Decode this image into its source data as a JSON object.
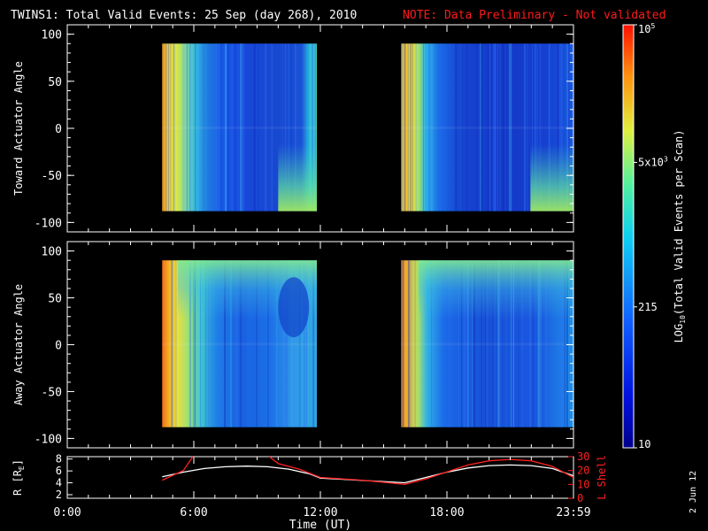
{
  "title_main": "TWINS1: Total Valid Events: 25 Sep (day 268), 2010",
  "title_note": "NOTE: Data Preliminary - Not validated",
  "stamp": "2 Jun 12",
  "colors": {
    "background": "#000000",
    "axis": "#ffffff",
    "note": "#ff1a1a",
    "lshell": "#ff2020",
    "radius": "#ffffff"
  },
  "chart_data": [
    {
      "type": "heatmap",
      "ylabel": "Toward Actuator Angle",
      "yticks": [
        100,
        50,
        0,
        -50,
        -100
      ],
      "ylim": [
        -110,
        110
      ],
      "xlim_hours": [
        0,
        24
      ],
      "data_blocks": [
        {
          "start": "4:30",
          "end": "11:50",
          "angle_range": [
            -88,
            90
          ]
        },
        {
          "start": "15:50",
          "end": "24:00",
          "angle_range": [
            -88,
            90
          ]
        }
      ]
    },
    {
      "type": "heatmap",
      "ylabel": "Away Actuator Angle",
      "yticks": [
        100,
        50,
        0,
        -50,
        -100
      ],
      "ylim": [
        -110,
        110
      ],
      "xlim_hours": [
        0,
        24
      ],
      "data_blocks": [
        {
          "start": "4:30",
          "end": "11:50",
          "angle_range": [
            -88,
            90
          ]
        },
        {
          "start": "15:50",
          "end": "24:00",
          "angle_range": [
            -88,
            90
          ]
        }
      ]
    },
    {
      "type": "line",
      "xlabel": "Time (UT)",
      "xticks": [
        "0:00",
        "6:00",
        "12:00",
        "18:00",
        "23:59"
      ],
      "ylabel_left_prefix": "R [R",
      "ylabel_left_sub": "E",
      "ylabel_left_suffix": "]",
      "yticks_left": [
        8,
        6,
        4,
        2
      ],
      "ylim_left": [
        1.4,
        8.4
      ],
      "ylabel_right": "L Shell",
      "yticks_right": [
        30,
        20,
        10,
        0
      ],
      "ylim_right": [
        0,
        30
      ],
      "series": [
        {
          "axis": "left",
          "x_hours": [
            4.5,
            5.5,
            6.5,
            7.5,
            8.5,
            9.5,
            10.5,
            11.5,
            12.0,
            14.0,
            16.0,
            17.0,
            18.0,
            19.0,
            20.0,
            21.0,
            22.0,
            23.0,
            24.0
          ],
          "y": [
            5.0,
            5.8,
            6.4,
            6.7,
            6.8,
            6.7,
            6.3,
            5.5,
            4.8,
            4.4,
            4.0,
            4.9,
            5.8,
            6.5,
            6.9,
            7.0,
            6.9,
            6.4,
            5.2
          ]
        },
        {
          "axis": "right",
          "x_hours": [
            4.5,
            5.5,
            6.0,
            9.5,
            10.0,
            11.0,
            12.0,
            14.0,
            16.0,
            17.0,
            18.0,
            19.0,
            20.0,
            21.0,
            22.0,
            23.0,
            24.0
          ],
          "y": [
            13,
            20,
            31,
            31,
            25,
            21,
            15,
            13,
            10,
            14,
            19,
            24,
            27,
            28,
            27,
            23,
            15
          ]
        }
      ]
    }
  ],
  "colorbar": {
    "label_prefix": "LOG",
    "label_sub": "10",
    "label_suffix": "(Total Valid Events per Scan)",
    "ticks": [
      {
        "base": "10",
        "exp": "5",
        "value": 100000
      },
      {
        "base": "5x10",
        "exp": "3",
        "value": 5000
      },
      {
        "base": "215",
        "exp": "",
        "value": 215
      },
      {
        "base": "10",
        "exp": "",
        "value": 10
      }
    ],
    "range": [
      10,
      100000
    ]
  }
}
